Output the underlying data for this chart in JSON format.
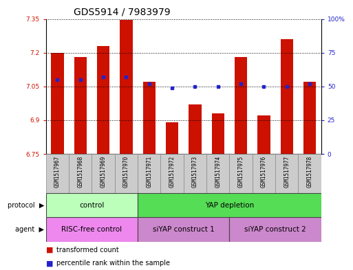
{
  "title": "GDS5914 / 7983979",
  "samples": [
    "GSM1517967",
    "GSM1517968",
    "GSM1517969",
    "GSM1517970",
    "GSM1517971",
    "GSM1517972",
    "GSM1517973",
    "GSM1517974",
    "GSM1517975",
    "GSM1517976",
    "GSM1517977",
    "GSM1517978"
  ],
  "bar_values": [
    7.2,
    7.18,
    7.23,
    7.345,
    7.07,
    6.89,
    6.97,
    6.93,
    7.18,
    6.92,
    7.26,
    7.07
  ],
  "percentile_values": [
    55,
    55,
    57,
    57,
    52,
    49,
    50,
    50,
    52,
    50,
    50,
    52
  ],
  "y_min": 6.75,
  "y_max": 7.35,
  "y_ticks": [
    6.75,
    6.9,
    7.05,
    7.2,
    7.35
  ],
  "y_right_ticks": [
    0,
    25,
    50,
    75,
    100
  ],
  "y_right_labels": [
    "0",
    "25",
    "50",
    "75",
    "100%"
  ],
  "bar_color": "#cc1100",
  "dot_color": "#2222cc",
  "protocol_groups": [
    {
      "label": "control",
      "start": 0,
      "end": 4,
      "color": "#bbffbb"
    },
    {
      "label": "YAP depletion",
      "start": 4,
      "end": 12,
      "color": "#55dd55"
    }
  ],
  "agent_groups": [
    {
      "label": "RISC-free control",
      "start": 0,
      "end": 4,
      "color": "#ee88ee"
    },
    {
      "label": "siYAP construct 1",
      "start": 4,
      "end": 8,
      "color": "#cc88cc"
    },
    {
      "label": "siYAP construct 2",
      "start": 8,
      "end": 12,
      "color": "#cc88cc"
    }
  ],
  "legend_items": [
    {
      "label": "transformed count",
      "color": "#cc1100"
    },
    {
      "label": "percentile rank within the sample",
      "color": "#2222cc"
    }
  ],
  "title_fontsize": 10,
  "tick_fontsize": 6.5,
  "label_fontsize": 7.5,
  "sample_fontsize": 5.5,
  "row_fontsize": 7.5
}
